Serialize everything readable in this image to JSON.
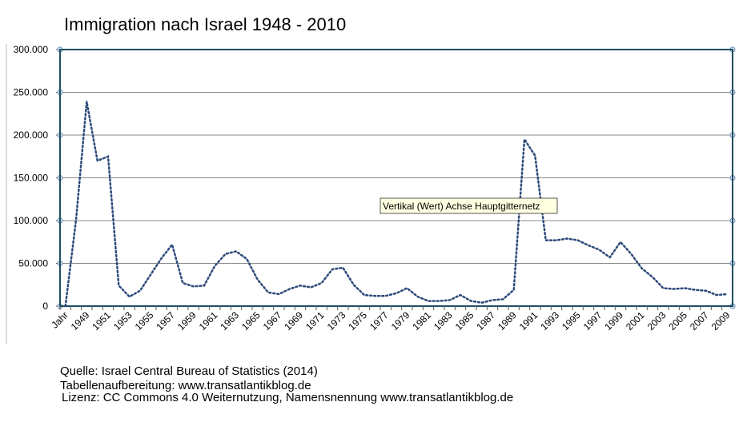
{
  "chart_data": {
    "type": "line",
    "title": "Immigration nach Israel 1948 - 2010",
    "categories": [
      "Jahr",
      null,
      "1949",
      null,
      "1951",
      null,
      "1953",
      null,
      "1955",
      null,
      "1957",
      null,
      "1959",
      null,
      "1961",
      null,
      "1963",
      null,
      "1965",
      null,
      "1967",
      null,
      "1969",
      null,
      "1971",
      null,
      "1973",
      null,
      "1975",
      null,
      "1977",
      null,
      "1979",
      null,
      "1981",
      null,
      "1983",
      null,
      "1985",
      null,
      "1987",
      null,
      "1989",
      null,
      "1991",
      null,
      "1993",
      null,
      "1995",
      null,
      "1997",
      null,
      "1999",
      null,
      "2001",
      null,
      "2003",
      null,
      "2005",
      null,
      "2007",
      null,
      "2009"
    ],
    "series": [
      {
        "color": "#2e4a7a",
        "values": [
          0,
          101000,
          239000,
          170000,
          175000,
          24000,
          11000,
          18000,
          37000,
          56000,
          72000,
          27000,
          23000,
          24000,
          47000,
          61000,
          64000,
          55000,
          31000,
          16000,
          14000,
          20000,
          24000,
          22000,
          27000,
          43000,
          45000,
          25000,
          13000,
          12000,
          12000,
          15000,
          21000,
          11000,
          6000,
          6000,
          7000,
          13000,
          6000,
          4000,
          7000,
          8000,
          19000,
          195000,
          176000,
          77000,
          77000,
          79000,
          77000,
          71000,
          66000,
          57000,
          75000,
          61000,
          44000,
          34000,
          21000,
          20000,
          21000,
          19000,
          18000,
          13000,
          14000
        ]
      }
    ],
    "ylim": [
      0,
      300000
    ],
    "yticks": [
      0,
      {
        "value": 50000,
        "label": "50.000"
      },
      {
        "value": 100000,
        "label": "100.000"
      },
      {
        "value": 150000,
        "label": "150.000"
      },
      {
        "value": 200000,
        "label": "200.000"
      },
      {
        "value": 250000,
        "label": "250.000"
      },
      {
        "value": 300000,
        "label": "300.000"
      }
    ],
    "grid": true,
    "tooltip": "Vertikal (Wert) Achse Hauptgitternetz",
    "notes": [
      "Quelle: Israel Central Bureau of Statistics (2014)",
      "Tabellenaufbereitung: www.transatlantikblog.de",
      "Lizenz: CC Commons 4.0 Weiternutzung, Namensnennung www.transatlantikblog.de"
    ]
  }
}
